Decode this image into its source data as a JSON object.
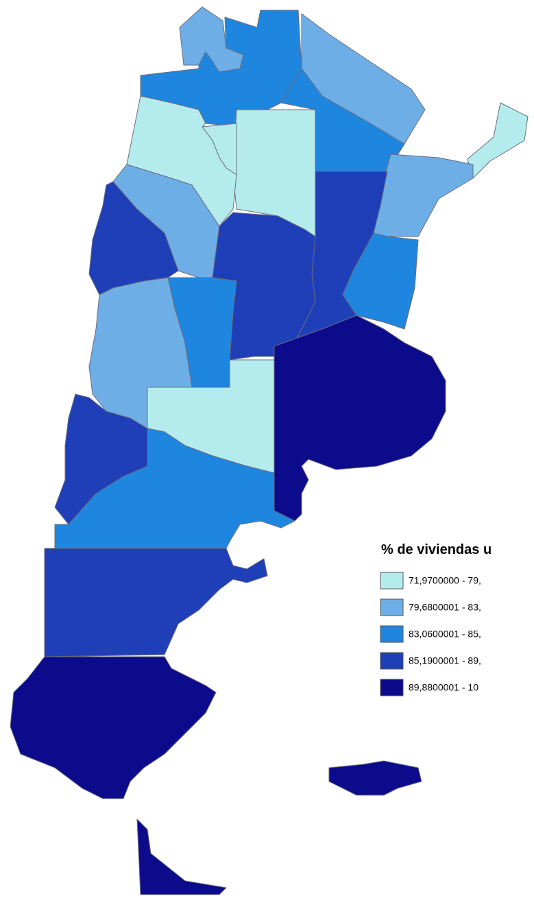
{
  "legend": {
    "title": "% de viviendas u",
    "classes": [
      {
        "label": "71,9700000 - 79,",
        "color": "#b4ecee"
      },
      {
        "label": "79,6800001 - 83,",
        "color": "#6eaee6"
      },
      {
        "label": "83,0600001 - 85,",
        "color": "#1f86e0"
      },
      {
        "label": "85,1900001 - 89,",
        "color": "#1e3fb7"
      },
      {
        "label": "89,8800001 - 10",
        "color": "#0b0b8c"
      }
    ]
  }
}
